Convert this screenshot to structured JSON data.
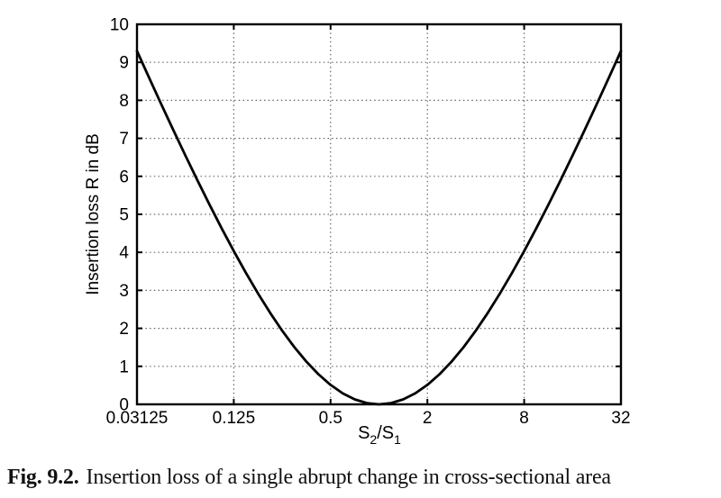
{
  "figure": {
    "caption_prefix": "Fig. 9.2.",
    "caption_text": "Insertion loss of a single abrupt change in cross-sectional area"
  },
  "chart_data": {
    "type": "line",
    "title": "",
    "xlabel": "S2/S1",
    "xlabel_parts": {
      "base1": "S",
      "sub1": "2",
      "divider": "/",
      "base2": "S",
      "sub2": "1"
    },
    "ylabel": "Insertion loss R in dB",
    "x_scale": "log2",
    "xlim": [
      0.03125,
      32
    ],
    "ylim": [
      0,
      10
    ],
    "xtick_values": [
      0.03125,
      0.125,
      0.5,
      2,
      8,
      32
    ],
    "xtick_labels": [
      "0.03125",
      "0.125",
      "0.5",
      "2",
      "8",
      "32"
    ],
    "ytick_values": [
      0,
      1,
      2,
      3,
      4,
      5,
      6,
      7,
      8,
      9,
      10
    ],
    "ytick_labels": [
      "0",
      "1",
      "2",
      "3",
      "4",
      "5",
      "6",
      "7",
      "8",
      "9",
      "10"
    ],
    "xgrid_values": [
      0.125,
      0.5,
      2,
      8
    ],
    "ygrid_values": [
      1,
      2,
      3,
      4,
      5,
      6,
      7,
      8,
      9
    ],
    "grid_style": "dotted",
    "legend": "none",
    "series": [
      {
        "name": "insertion loss R",
        "log2_x": [
          -5,
          -4.75,
          -4.5,
          -4.25,
          -4,
          -3.75,
          -3.5,
          -3.25,
          -3,
          -2.75,
          -2.5,
          -2.25,
          -2,
          -1.75,
          -1.5,
          -1.25,
          -1,
          -0.75,
          -0.5,
          -0.25,
          0,
          0.25,
          0.5,
          0.75,
          1,
          1.25,
          1.5,
          1.75,
          2,
          2.25,
          2.5,
          2.75,
          3,
          3.25,
          3.5,
          3.75,
          4,
          4.25,
          4.5,
          4.75,
          5
        ],
        "y": [
          9.298,
          8.595,
          7.901,
          7.218,
          6.548,
          5.891,
          5.251,
          4.631,
          4.033,
          3.462,
          2.919,
          2.41,
          1.938,
          1.508,
          1.124,
          0.791,
          0.512,
          0.29,
          0.13,
          0.033,
          0,
          0.033,
          0.13,
          0.29,
          0.512,
          0.791,
          1.124,
          1.508,
          1.938,
          2.41,
          2.919,
          3.462,
          4.033,
          4.631,
          5.251,
          5.891,
          6.548,
          7.218,
          7.901,
          8.595,
          9.298
        ]
      }
    ],
    "colors": {
      "curve": "#000000",
      "axis": "#000000",
      "grid": "#666666",
      "background": "#ffffff",
      "caption_text": "#111111"
    }
  }
}
